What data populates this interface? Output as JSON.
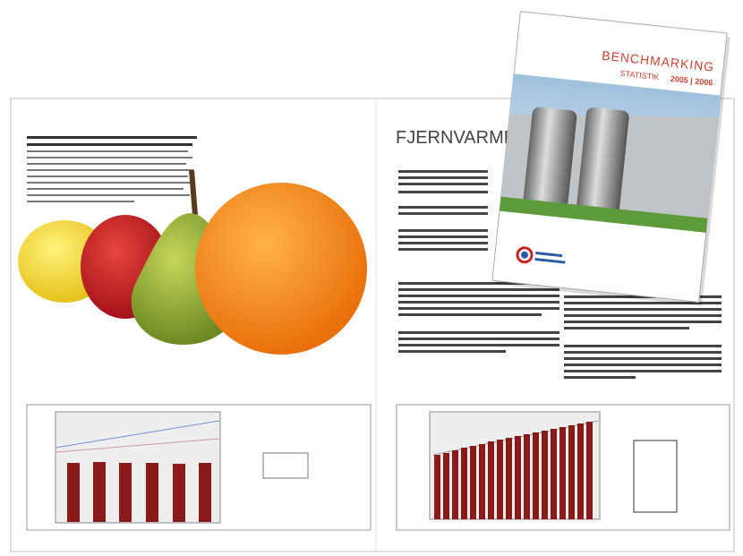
{
  "spread": {
    "title": "FJERNVARME"
  },
  "cover": {
    "title": "BENCHMARKING",
    "subtitle": "STATISTIK",
    "years": "2005 | 2006"
  }
}
